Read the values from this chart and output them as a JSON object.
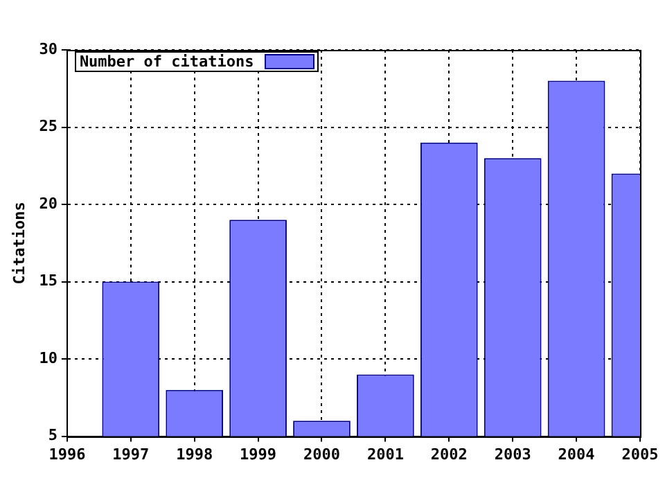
{
  "chart_data": {
    "type": "bar",
    "ylabel": "Citations",
    "x": [
      1997,
      1998,
      1999,
      2000,
      2001,
      2002,
      2003,
      2004,
      2005
    ],
    "series": [
      {
        "name": "Number of citations",
        "color": "#7b7bff",
        "values": [
          15,
          8,
          19,
          6,
          9,
          24,
          23,
          28,
          22
        ]
      }
    ],
    "xlim": [
      1996,
      2005
    ],
    "xticks": [
      1996,
      1997,
      1998,
      1999,
      2000,
      2001,
      2002,
      2003,
      2004,
      2005
    ],
    "ylim": [
      5,
      30
    ],
    "yticks": [
      5,
      10,
      15,
      20,
      25,
      30
    ],
    "grid": true,
    "legend": "top left"
  }
}
